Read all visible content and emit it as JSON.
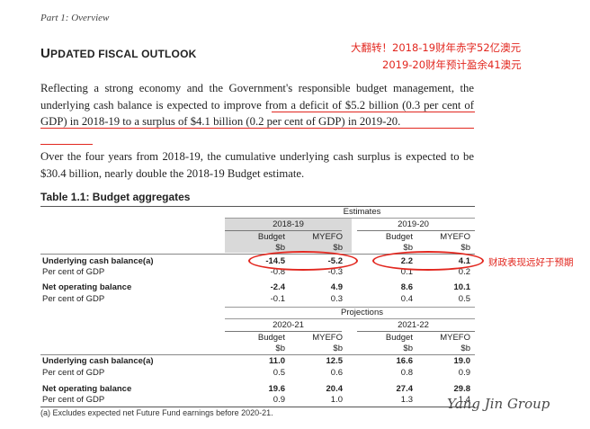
{
  "part_label": "Part 1: Overview",
  "heading": {
    "cap": "U",
    "rest": "PDATED FISCAL OUTLOOK"
  },
  "annotations": {
    "top_line1": "大翻转！2018-19财年赤字52亿澳元",
    "top_line2": "2019-20财年预计盈余41澳元",
    "side_note": "财政表现远好于预期"
  },
  "paragraph1": {
    "prefix": "Reflecting a strong economy and the Government's responsible budget management, the underlying cash balance is expected to ",
    "highlight": "improve from a deficit of $5.2 billion (0.3 per cent of GDP) in 2018-19 to a surplus of $4.1 billion (0.2 per cent of GDP) in 2019-20",
    "suffix": "."
  },
  "paragraph2": "Over the four years from 2018-19, the cumulative underlying cash surplus is expected to be $30.4 billion, nearly double the 2018-19 Budget estimate.",
  "table": {
    "title": "Table 1.1: Budget aggregates",
    "section1_header": "Estimates",
    "section2_header": "Projections",
    "block1": {
      "years": [
        "2018-19",
        "2019-20"
      ],
      "sub_headers": [
        "Budget",
        "MYEFO",
        "Budget",
        "MYEFO"
      ],
      "units": [
        "$b",
        "$b",
        "$b",
        "$b"
      ],
      "rows": [
        {
          "label": "Underlying cash balance(a)",
          "bold": true,
          "values": [
            "-14.5",
            "-5.2",
            "2.2",
            "4.1"
          ]
        },
        {
          "label": "Per cent of GDP",
          "bold": false,
          "values": [
            "-0.8",
            "-0.3",
            "0.1",
            "0.2"
          ]
        },
        {
          "label": "Net operating balance",
          "bold": true,
          "values": [
            "-2.4",
            "4.9",
            "8.6",
            "10.1"
          ]
        },
        {
          "label": "Per cent of GDP",
          "bold": false,
          "values": [
            "-0.1",
            "0.3",
            "0.4",
            "0.5"
          ]
        }
      ]
    },
    "block2": {
      "years": [
        "2020-21",
        "2021-22"
      ],
      "sub_headers": [
        "Budget",
        "MYEFO",
        "Budget",
        "MYEFO"
      ],
      "units": [
        "$b",
        "$b",
        "$b",
        "$b"
      ],
      "rows": [
        {
          "label": "Underlying cash balance(a)",
          "bold": true,
          "values": [
            "11.0",
            "12.5",
            "16.6",
            "19.0"
          ]
        },
        {
          "label": "Per cent of GDP",
          "bold": false,
          "values": [
            "0.5",
            "0.6",
            "0.8",
            "0.9"
          ]
        },
        {
          "label": "Net operating balance",
          "bold": true,
          "values": [
            "19.6",
            "20.4",
            "27.4",
            "29.8"
          ]
        },
        {
          "label": "Per cent of GDP",
          "bold": false,
          "values": [
            "0.9",
            "1.0",
            "1.3",
            "1.4"
          ]
        }
      ]
    },
    "footnote": "(a)  Excludes expected net Future Fund earnings before 2020-21."
  },
  "watermark": "Yang Jin Group",
  "colors": {
    "annotation_red": "#e2271f",
    "shade": "#d9d9d9"
  }
}
